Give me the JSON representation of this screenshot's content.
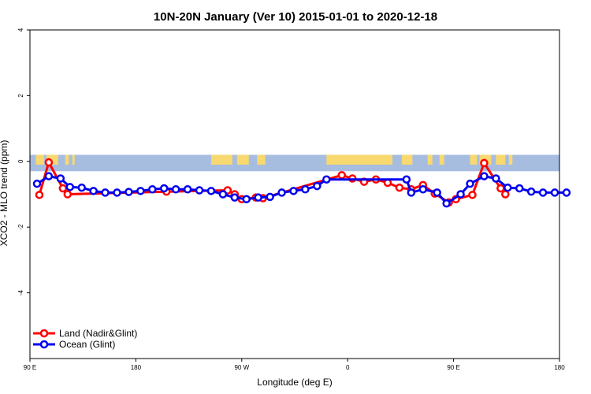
{
  "chart_data": {
    "type": "line",
    "title": "10N-20N January (Ver 10)   2015-01-01 to 2020-12-18",
    "xlabel": "Longitude (deg E)",
    "ylabel": "XCO2 - MLO trend (ppm)",
    "xlim": [
      90,
      540
    ],
    "ylim": [
      -6,
      4
    ],
    "x_ticks": [
      {
        "value": 90,
        "label": "90 E"
      },
      {
        "value": 180,
        "label": "180"
      },
      {
        "value": 270,
        "label": "90 W"
      },
      {
        "value": 360,
        "label": "0"
      },
      {
        "value": 450,
        "label": "90 E"
      },
      {
        "value": 540,
        "label": "180"
      }
    ],
    "y_ticks": [
      {
        "value": 4,
        "label": "4"
      },
      {
        "value": 2,
        "label": "2"
      },
      {
        "value": 0,
        "label": "0"
      },
      {
        "value": -2,
        "label": "-2"
      },
      {
        "value": -4,
        "label": "-4"
      }
    ],
    "map_strip": {
      "ymin": -0.3,
      "ymax": 0.2,
      "ocean_color": "#a7bde0",
      "land_color": "#f7d970"
    },
    "legend_position": "bottom-left",
    "series": [
      {
        "name": "Land (Nadir&Glint)",
        "color": "#ff0000",
        "points": [
          [
            98,
            -1.02
          ],
          [
            106,
            -0.03
          ],
          [
            118,
            -0.82
          ],
          [
            122,
            -1.0
          ],
          [
            206,
            -0.92
          ],
          [
            258,
            -0.88
          ],
          [
            264,
            -1.0
          ],
          [
            270,
            -1.15
          ],
          [
            282,
            -1.1
          ],
          [
            288,
            -1.12
          ],
          [
            355,
            -0.42
          ],
          [
            364,
            -0.52
          ],
          [
            374,
            -0.62
          ],
          [
            384,
            -0.55
          ],
          [
            394,
            -0.65
          ],
          [
            404,
            -0.8
          ],
          [
            414,
            -0.85
          ],
          [
            424,
            -0.72
          ],
          [
            434,
            -0.98
          ],
          [
            446,
            -1.25
          ],
          [
            452,
            -1.15
          ],
          [
            466,
            -1.02
          ],
          [
            476,
            -0.05
          ],
          [
            490,
            -0.82
          ],
          [
            494,
            -1.0
          ]
        ]
      },
      {
        "name": "Ocean (Glint)",
        "color": "#0000ee",
        "points": [
          [
            96,
            -0.68
          ],
          [
            106,
            -0.45
          ],
          [
            116,
            -0.52
          ],
          [
            124,
            -0.78
          ],
          [
            134,
            -0.8
          ],
          [
            144,
            -0.9
          ],
          [
            154,
            -0.95
          ],
          [
            164,
            -0.95
          ],
          [
            174,
            -0.93
          ],
          [
            184,
            -0.9
          ],
          [
            194,
            -0.85
          ],
          [
            204,
            -0.82
          ],
          [
            214,
            -0.85
          ],
          [
            224,
            -0.85
          ],
          [
            234,
            -0.88
          ],
          [
            244,
            -0.9
          ],
          [
            254,
            -1.0
          ],
          [
            264,
            -1.1
          ],
          [
            274,
            -1.15
          ],
          [
            284,
            -1.1
          ],
          [
            294,
            -1.08
          ],
          [
            304,
            -0.95
          ],
          [
            314,
            -0.9
          ],
          [
            324,
            -0.85
          ],
          [
            334,
            -0.75
          ],
          [
            342,
            -0.55
          ],
          [
            410,
            -0.55
          ],
          [
            414,
            -0.95
          ],
          [
            424,
            -0.85
          ],
          [
            436,
            -0.95
          ],
          [
            444,
            -1.28
          ],
          [
            456,
            -1.0
          ],
          [
            464,
            -0.68
          ],
          [
            476,
            -0.45
          ],
          [
            486,
            -0.52
          ],
          [
            496,
            -0.8
          ],
          [
            506,
            -0.82
          ],
          [
            516,
            -0.92
          ],
          [
            526,
            -0.95
          ],
          [
            536,
            -0.95
          ],
          [
            546,
            -0.95
          ]
        ]
      }
    ]
  }
}
